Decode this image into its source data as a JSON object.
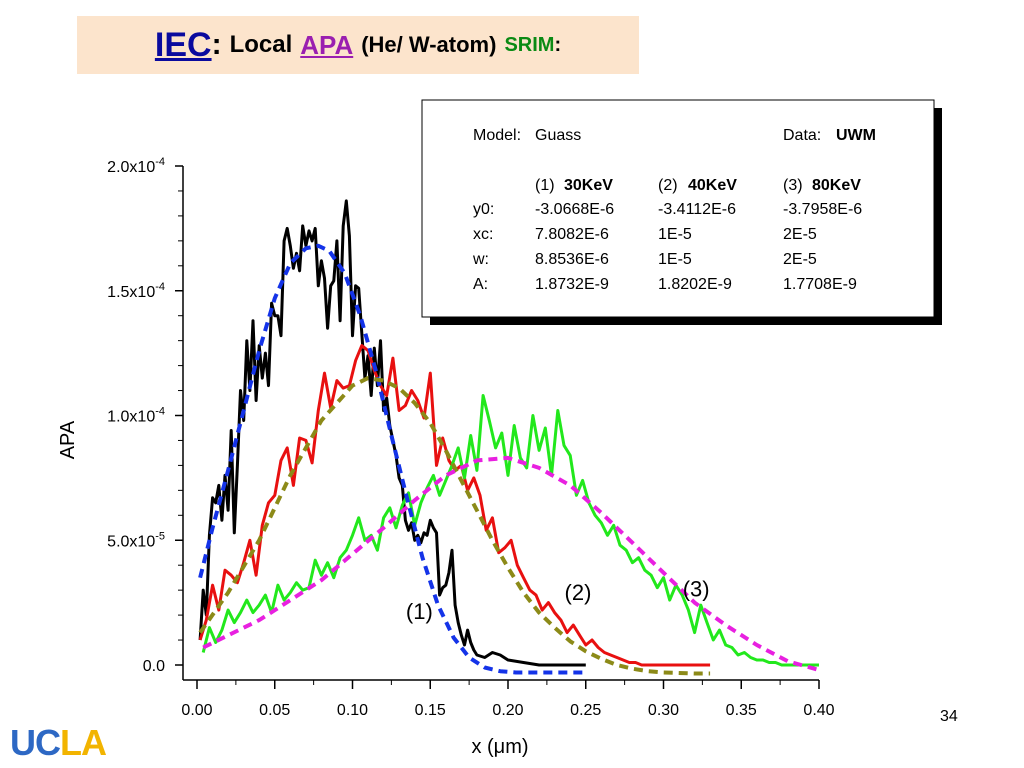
{
  "slide": {
    "title_iec": "IEC",
    "title_colon": ":",
    "title_local": "Local",
    "title_apa": "APA",
    "title_paren": "(He/ W-atom)",
    "title_srim": "SRIM",
    "title_colon2": ":",
    "page_number": "34",
    "logo_part1": "UC",
    "logo_part2": "LA"
  },
  "chart_data": {
    "type": "line",
    "xlabel": "x (μm)",
    "ylabel": "APA",
    "xlim": [
      0.0,
      0.4
    ],
    "ylim": [
      0.0,
      0.0002
    ],
    "x_ticks": [
      "0.00",
      "0.05",
      "0.10",
      "0.15",
      "0.20",
      "0.25",
      "0.30",
      "0.35",
      "0.40"
    ],
    "x_tick_values": [
      0.0,
      0.05,
      0.1,
      0.15,
      0.2,
      0.25,
      0.3,
      0.35,
      0.4
    ],
    "y_ticks": [
      {
        "value": 0.0,
        "mantissa": "0.0",
        "exp": ""
      },
      {
        "value": 5e-05,
        "mantissa": "5.0x10",
        "exp": "-5"
      },
      {
        "value": 0.0001,
        "mantissa": "1.0x10",
        "exp": "-4"
      },
      {
        "value": 0.00015,
        "mantissa": "1.5x10",
        "exp": "-4"
      },
      {
        "value": 0.0002,
        "mantissa": "2.0x10",
        "exp": "-4"
      }
    ],
    "grid": false,
    "legend_box": {
      "model_label": "Model:",
      "model_value": "Guass",
      "data_label": "Data:",
      "data_value": "UWM",
      "columns": [
        {
          "num": "(1)",
          "energy": "30KeV"
        },
        {
          "num": "(2)",
          "energy": "40KeV"
        },
        {
          "num": "(3)",
          "energy": "80KeV"
        }
      ],
      "rows": [
        {
          "param": "y0:",
          "values": [
            "-3.0668E-6",
            "-3.4112E-6",
            "-3.7958E-6"
          ]
        },
        {
          "param": "xc:",
          "values": [
            "7.8082E-6",
            "1E-5",
            "2E-5"
          ]
        },
        {
          "param": "w:",
          "values": [
            "8.8536E-6",
            "1E-5",
            "2E-5"
          ]
        },
        {
          "param": "A:",
          "values": [
            "1.8732E-9",
            "1.8202E-9",
            "1.7708E-9"
          ]
        }
      ]
    },
    "annotations": [
      {
        "text": "(1)",
        "x": 0.143,
        "y": 1.85e-05
      },
      {
        "text": "(2)",
        "x": 0.245,
        "y": 2.6e-05
      },
      {
        "text": "(3)",
        "x": 0.321,
        "y": 2.75e-05
      }
    ],
    "series": [
      {
        "color": "#000000",
        "style": "solid",
        "x": [
          0.002,
          0.004,
          0.006,
          0.008,
          0.01,
          0.012,
          0.014,
          0.016,
          0.018,
          0.02,
          0.022,
          0.024,
          0.026,
          0.028,
          0.03,
          0.032,
          0.034,
          0.036,
          0.038,
          0.04,
          0.042,
          0.044,
          0.046,
          0.048,
          0.05,
          0.052,
          0.054,
          0.056,
          0.058,
          0.06,
          0.062,
          0.064,
          0.066,
          0.068,
          0.07,
          0.072,
          0.074,
          0.076,
          0.078,
          0.08,
          0.082,
          0.084,
          0.086,
          0.088,
          0.09,
          0.092,
          0.094,
          0.096,
          0.098,
          0.1,
          0.102,
          0.104,
          0.106,
          0.108,
          0.11,
          0.112,
          0.114,
          0.116,
          0.118,
          0.12,
          0.122,
          0.124,
          0.126,
          0.128,
          0.13,
          0.132,
          0.134,
          0.136,
          0.138,
          0.14,
          0.142,
          0.144,
          0.146,
          0.148,
          0.15,
          0.152,
          0.154,
          0.156,
          0.158,
          0.16,
          0.162,
          0.164,
          0.166,
          0.168,
          0.17,
          0.172,
          0.174,
          0.176,
          0.178,
          0.18,
          0.185,
          0.19,
          0.195,
          0.2,
          0.21,
          0.22,
          0.23,
          0.24,
          0.25
        ],
        "y": [
          1e-05,
          3e-05,
          2e-05,
          5.2e-05,
          6.7e-05,
          6.5e-05,
          7.2e-05,
          5.8e-05,
          7.6e-05,
          6.2e-05,
          9.4e-05,
          5.3e-05,
          8e-05,
          0.00011,
          9.8e-05,
          0.00013,
          0.00011,
          0.000138,
          0.000106,
          0.000128,
          0.000115,
          0.000125,
          0.000112,
          0.000145,
          0.00014,
          0.00014,
          0.000132,
          0.00017,
          0.000175,
          0.000168,
          0.000159,
          0.000165,
          0.000158,
          0.000176,
          0.000168,
          0.000174,
          0.00017,
          0.000175,
          0.000152,
          0.000162,
          0.000155,
          0.000135,
          0.000152,
          0.000154,
          0.00017,
          0.000138,
          0.000176,
          0.000186,
          0.000172,
          0.000132,
          0.000152,
          0.000151,
          0.000133,
          0.000115,
          0.000124,
          0.000108,
          0.000127,
          0.000112,
          0.00013,
          0.000102,
          0.000107,
          9.6e-05,
          9e-05,
          8.4e-05,
          7.5e-05,
          7.2e-05,
          5.8e-05,
          5.4e-05,
          5.7e-05,
          5e-05,
          5.2e-05,
          4.9e-05,
          5.3e-05,
          5.2e-05,
          5.8e-05,
          5.5e-05,
          5.3e-05,
          2.8e-05,
          3.1e-05,
          3.2e-05,
          3.7e-05,
          4.6e-05,
          2.4e-05,
          1.7e-05,
          1.2e-05,
          8e-06,
          1.4e-05,
          9e-06,
          6e-06,
          4e-06,
          3e-06,
          5e-06,
          4e-06,
          2e-06,
          1e-06,
          0.0,
          0.0,
          0.0,
          0.0
        ]
      },
      {
        "color": "#e81010",
        "style": "solid",
        "x": [
          0.002,
          0.006,
          0.01,
          0.014,
          0.018,
          0.022,
          0.026,
          0.03,
          0.034,
          0.038,
          0.042,
          0.046,
          0.05,
          0.054,
          0.058,
          0.062,
          0.066,
          0.07,
          0.074,
          0.078,
          0.082,
          0.086,
          0.09,
          0.094,
          0.098,
          0.102,
          0.106,
          0.11,
          0.114,
          0.118,
          0.122,
          0.126,
          0.13,
          0.134,
          0.138,
          0.142,
          0.146,
          0.15,
          0.154,
          0.158,
          0.162,
          0.166,
          0.17,
          0.174,
          0.178,
          0.182,
          0.186,
          0.19,
          0.194,
          0.198,
          0.202,
          0.206,
          0.21,
          0.214,
          0.218,
          0.222,
          0.226,
          0.23,
          0.234,
          0.238,
          0.242,
          0.246,
          0.25,
          0.254,
          0.258,
          0.262,
          0.266,
          0.27,
          0.274,
          0.278,
          0.282,
          0.286,
          0.29,
          0.3,
          0.31,
          0.32,
          0.33
        ],
        "y": [
          1e-05,
          1.8e-05,
          3.2e-05,
          2.2e-05,
          3.8e-05,
          3.6e-05,
          3.3e-05,
          4.1e-05,
          5e-05,
          3.6e-05,
          5.6e-05,
          6.5e-05,
          6.8e-05,
          8.2e-05,
          8.7e-05,
          7.2e-05,
          9.1e-05,
          9e-05,
          8.1e-05,
          0.000102,
          0.000117,
          0.000103,
          0.000114,
          0.000111,
          0.000112,
          0.000122,
          0.000128,
          0.000126,
          0.000118,
          0.000112,
          0.000108,
          0.000123,
          0.000102,
          0.000104,
          0.00011,
          0.000106,
          9.9e-05,
          0.000117,
          8e-05,
          9.1e-05,
          8.2e-05,
          7.8e-05,
          8e-05,
          7e-05,
          7.5e-05,
          6.8e-05,
          5.4e-05,
          5.9e-05,
          4.5e-05,
          4.7e-05,
          5e-05,
          4e-05,
          3.5e-05,
          3e-05,
          2.8e-05,
          2.2e-05,
          2.5e-05,
          2.1e-05,
          1.8e-05,
          1.3e-05,
          1.6e-05,
          1.2e-05,
          8e-06,
          1e-05,
          7e-06,
          5e-06,
          4e-06,
          3e-06,
          2e-06,
          1e-06,
          1e-06,
          0.0,
          0.0,
          0.0,
          0.0,
          0.0,
          0.0
        ]
      },
      {
        "color": "#22e81c",
        "style": "solid",
        "x": [
          0.004,
          0.008,
          0.012,
          0.016,
          0.02,
          0.024,
          0.028,
          0.032,
          0.036,
          0.04,
          0.044,
          0.048,
          0.052,
          0.056,
          0.06,
          0.064,
          0.068,
          0.072,
          0.076,
          0.08,
          0.084,
          0.088,
          0.092,
          0.096,
          0.1,
          0.104,
          0.108,
          0.112,
          0.116,
          0.12,
          0.124,
          0.128,
          0.132,
          0.136,
          0.14,
          0.144,
          0.148,
          0.152,
          0.156,
          0.16,
          0.164,
          0.168,
          0.172,
          0.176,
          0.18,
          0.184,
          0.188,
          0.192,
          0.196,
          0.2,
          0.204,
          0.208,
          0.212,
          0.216,
          0.22,
          0.224,
          0.228,
          0.232,
          0.236,
          0.24,
          0.244,
          0.248,
          0.252,
          0.256,
          0.26,
          0.264,
          0.268,
          0.272,
          0.276,
          0.28,
          0.284,
          0.288,
          0.292,
          0.296,
          0.3,
          0.304,
          0.308,
          0.312,
          0.316,
          0.32,
          0.324,
          0.328,
          0.332,
          0.336,
          0.34,
          0.344,
          0.348,
          0.352,
          0.356,
          0.36,
          0.364,
          0.368,
          0.372,
          0.376,
          0.38,
          0.385,
          0.39,
          0.395,
          0.4
        ],
        "y": [
          5e-06,
          1.5e-05,
          9e-06,
          1.4e-05,
          2.2e-05,
          1.7e-05,
          2.1e-05,
          2.6e-05,
          2.1e-05,
          2.4e-05,
          2.8e-05,
          2.1e-05,
          3.2e-05,
          2.6e-05,
          2.9e-05,
          3.3e-05,
          3e-05,
          3.1e-05,
          4.2e-05,
          3.6e-05,
          4.1e-05,
          3.5e-05,
          4.3e-05,
          4.6e-05,
          5.2e-05,
          5.9e-05,
          5e-05,
          5.2e-05,
          4.6e-05,
          5.9e-05,
          6.3e-05,
          5.5e-05,
          6.4e-05,
          6.9e-05,
          5.6e-05,
          6.5e-05,
          7.1e-05,
          7.6e-05,
          6.8e-05,
          7.4e-05,
          8e-05,
          8.7e-05,
          7.5e-05,
          9.2e-05,
          7.8e-05,
          0.000108,
          9.8e-05,
          8.7e-05,
          9.3e-05,
          7.6e-05,
          9.6e-05,
          8.3e-05,
          7.9e-05,
          0.0001,
          8.6e-05,
          9.5e-05,
          7.6e-05,
          0.000102,
          8.8e-05,
          8.4e-05,
          6.8e-05,
          7.4e-05,
          6.5e-05,
          6e-05,
          5.7e-05,
          5.2e-05,
          5.6e-05,
          4.8e-05,
          4.6e-05,
          4.1e-05,
          4.3e-05,
          3.8e-05,
          3.6e-05,
          3.1e-05,
          3.5e-05,
          2.6e-05,
          3.2e-05,
          2.8e-05,
          2.2e-05,
          1.3e-05,
          2.4e-05,
          1.7e-05,
          1e-05,
          1.4e-05,
          8e-06,
          7e-06,
          4e-06,
          5e-06,
          3e-06,
          2e-06,
          2e-06,
          1e-06,
          1e-06,
          0.0,
          0.0,
          0.0,
          0.0,
          0.0,
          0.0
        ]
      },
      {
        "color": "#1433e8",
        "style": "dashed",
        "x": [
          0.002,
          0.01,
          0.02,
          0.03,
          0.04,
          0.05,
          0.06,
          0.07,
          0.078,
          0.085,
          0.095,
          0.105,
          0.115,
          0.125,
          0.135,
          0.145,
          0.155,
          0.165,
          0.175,
          0.185,
          0.195,
          0.205,
          0.215,
          0.225,
          0.235,
          0.245,
          0.25
        ],
        "y": [
          3.5e-05,
          5.5e-05,
          7.8e-05,
          0.000102,
          0.000126,
          0.000147,
          0.000161,
          0.000167,
          0.000168,
          0.000166,
          0.000157,
          0.00014,
          0.000118,
          9.2e-05,
          6.7e-05,
          4.3e-05,
          2.4e-05,
          1.1e-05,
          3e-06,
          -1e-06,
          -2.5e-06,
          -3e-06,
          -3e-06,
          -3e-06,
          -3e-06,
          -3e-06,
          -3e-06
        ]
      },
      {
        "color": "#8c8a18",
        "style": "dashed",
        "x": [
          0.002,
          0.02,
          0.04,
          0.06,
          0.08,
          0.1,
          0.11,
          0.12,
          0.13,
          0.14,
          0.15,
          0.16,
          0.17,
          0.18,
          0.19,
          0.2,
          0.21,
          0.22,
          0.23,
          0.24,
          0.25,
          0.26,
          0.27,
          0.28,
          0.29,
          0.3,
          0.32,
          0.33
        ],
        "y": [
          1.3e-05,
          2.9e-05,
          5e-05,
          7.6e-05,
          9.8e-05,
          0.000112,
          0.000115,
          0.000114,
          0.000111,
          0.000105,
          9.7e-05,
          8.6e-05,
          7.4e-05,
          6.2e-05,
          5e-05,
          3.9e-05,
          2.9e-05,
          2.1e-05,
          1.5e-05,
          9.5e-06,
          5.5e-06,
          2.5e-06,
          0.0,
          -1.5e-06,
          -2.5e-06,
          -3e-06,
          -3.4e-06,
          -3.4e-06
        ]
      },
      {
        "color": "#e820e0",
        "style": "dashed",
        "x": [
          0.004,
          0.04,
          0.08,
          0.12,
          0.14,
          0.16,
          0.18,
          0.2,
          0.22,
          0.24,
          0.26,
          0.28,
          0.3,
          0.32,
          0.34,
          0.36,
          0.38,
          0.4
        ],
        "y": [
          7e-06,
          1.8e-05,
          3.4e-05,
          5.5e-05,
          6.6e-05,
          7.6e-05,
          8.2e-05,
          8.3e-05,
          7.9e-05,
          7.2e-05,
          6.1e-05,
          4.9e-05,
          3.7e-05,
          2.5e-05,
          1.6e-05,
          8e-06,
          1.5e-06,
          -2e-06
        ]
      }
    ]
  }
}
